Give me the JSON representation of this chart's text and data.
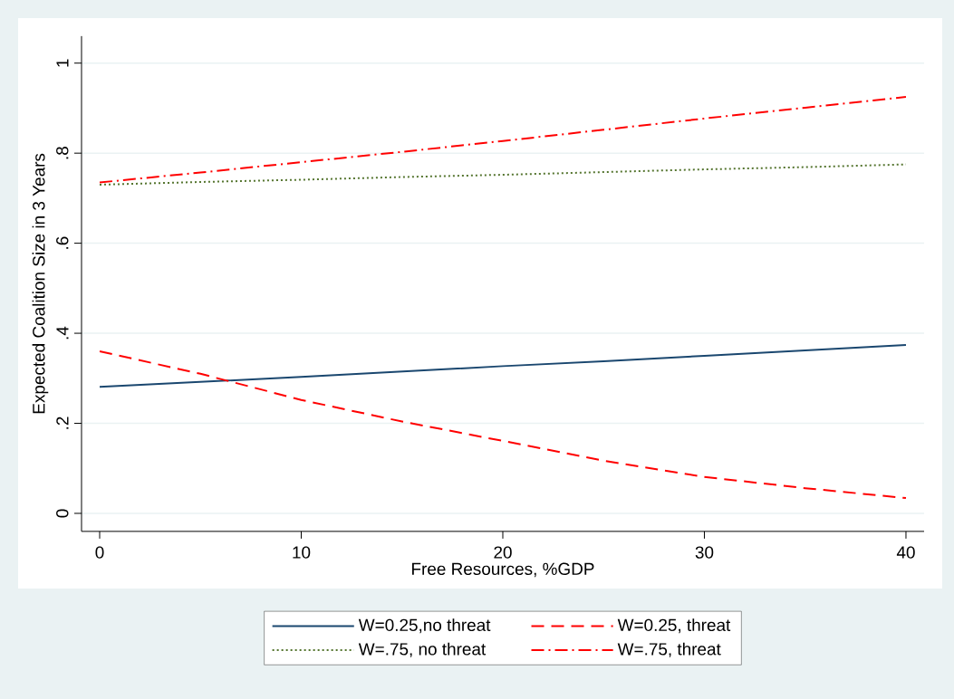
{
  "chart_data": {
    "type": "line",
    "xlabel": "Free Resources, %GDP",
    "ylabel": "Expected Coalition Size in 3 Years",
    "x": [
      0,
      5,
      10,
      15,
      20,
      25,
      30,
      35,
      40
    ],
    "series": [
      {
        "name": "W=0.25,no threat",
        "color": "#1a476f",
        "line_style": "solid",
        "values": [
          0.281,
          0.292,
          0.303,
          0.315,
          0.327,
          0.338,
          0.35,
          0.362,
          0.374
        ]
      },
      {
        "name": "W=0.25, threat",
        "color": "#ff0000",
        "line_style": "dashed",
        "values": [
          0.36,
          0.31,
          0.252,
          0.204,
          0.161,
          0.117,
          0.081,
          0.056,
          0.034
        ]
      },
      {
        "name": "W=.75, no threat",
        "color": "#55752f",
        "line_style": "dotted",
        "values": [
          0.73,
          0.736,
          0.741,
          0.747,
          0.752,
          0.758,
          0.764,
          0.769,
          0.775
        ]
      },
      {
        "name": "W=.75, threat",
        "color": "#ff0000",
        "line_style": "dashdot",
        "values": [
          0.735,
          0.757,
          0.78,
          0.803,
          0.827,
          0.852,
          0.877,
          0.901,
          0.925
        ]
      }
    ],
    "xlim": [
      -0.9,
      40.9
    ],
    "ylim": [
      -0.04,
      1.06
    ],
    "xticks": [
      0,
      10,
      20,
      30,
      40
    ],
    "yticks": [
      {
        "value": 0,
        "label": "0"
      },
      {
        "value": 0.2,
        "label": ".2"
      },
      {
        "value": 0.4,
        "label": ".4"
      },
      {
        "value": 0.6,
        "label": ".6"
      },
      {
        "value": 0.8,
        "label": ".8"
      },
      {
        "value": 1,
        "label": "1"
      }
    ],
    "grid": "y",
    "legend": "bottom",
    "marker": "none"
  }
}
